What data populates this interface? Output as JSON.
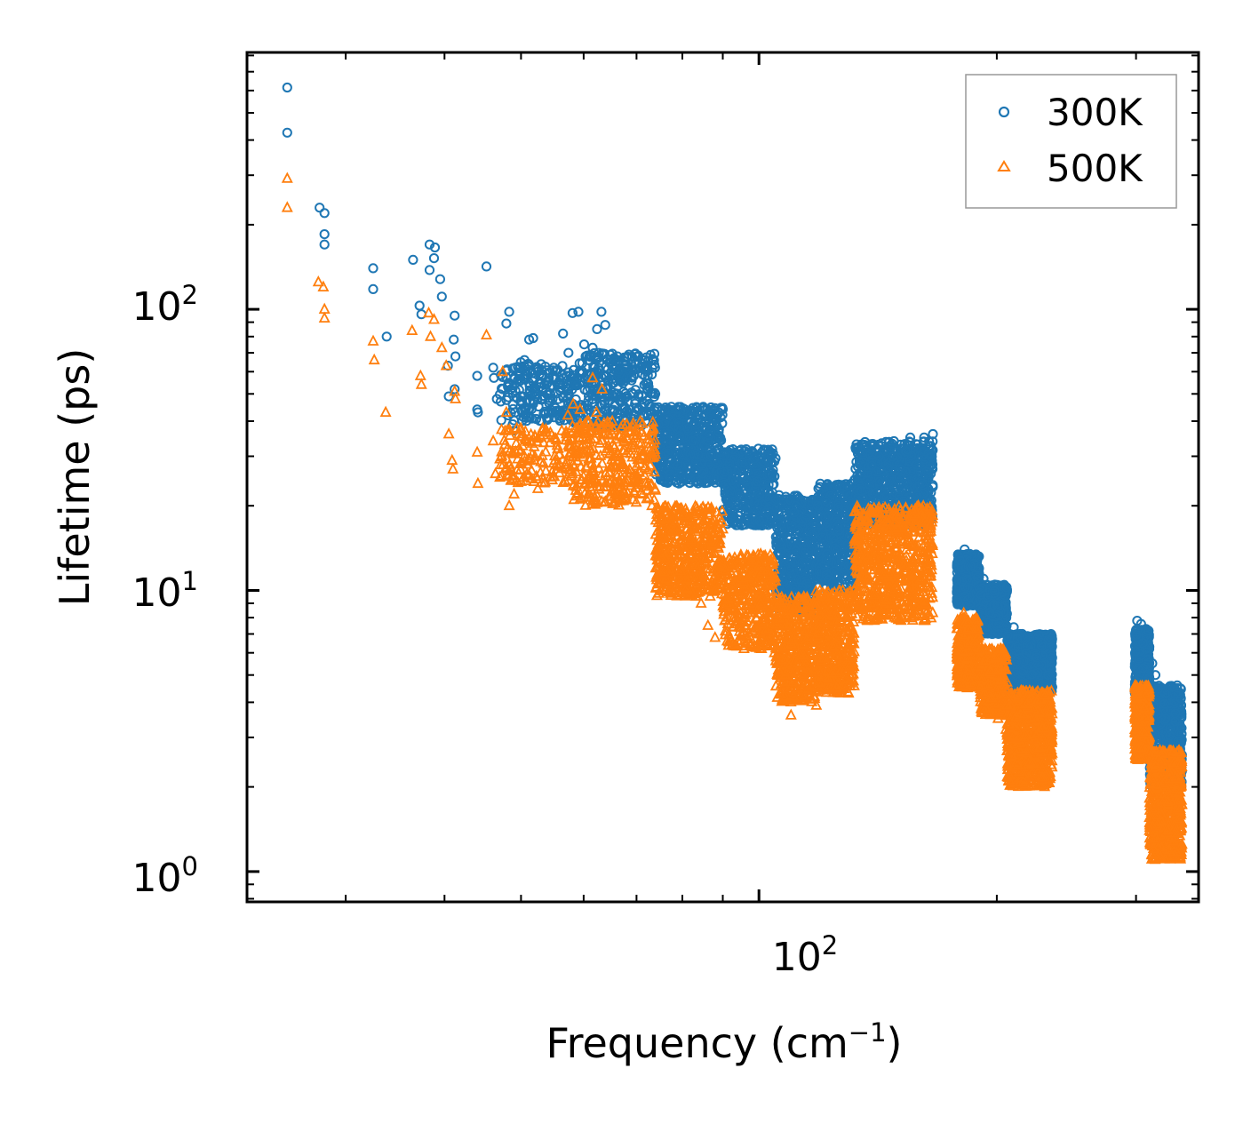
{
  "chart_data": {
    "type": "scatter",
    "title": "",
    "xlabel": "Frequency (cm",
    "xlabel_sup": "−1",
    "xlabel_close": ")",
    "ylabel": "Lifetime (ps)",
    "xscale": "log",
    "yscale": "log",
    "xlim": [
      22.5,
      360
    ],
    "ylim": [
      0.78,
      820
    ],
    "x_ticks": [
      {
        "value": 100,
        "base": "10",
        "exp": "2"
      }
    ],
    "y_ticks": [
      {
        "value": 1,
        "base": "10",
        "exp": "0"
      },
      {
        "value": 10,
        "base": "10",
        "exp": "1"
      },
      {
        "value": 100,
        "base": "10",
        "exp": "2"
      }
    ],
    "legend": {
      "position": "top-right"
    },
    "colors": {
      "300K": "#1f77b4",
      "500K": "#ff7f0e"
    },
    "series": [
      {
        "name": "300K",
        "marker": "circle",
        "points": [
          [
            25.3,
            615
          ],
          [
            25.3,
            425
          ],
          [
            27.8,
            230
          ],
          [
            28.2,
            220
          ],
          [
            28.2,
            185
          ],
          [
            28.2,
            170
          ],
          [
            32.5,
            140
          ],
          [
            32.5,
            118
          ],
          [
            33.8,
            80
          ],
          [
            36.5,
            150
          ],
          [
            37.2,
            103
          ],
          [
            37.4,
            96
          ],
          [
            38.3,
            170
          ],
          [
            38.3,
            138
          ],
          [
            38.9,
            166
          ],
          [
            38.8,
            152
          ],
          [
            39.5,
            128
          ],
          [
            39.7,
            111
          ],
          [
            40.4,
            63
          ],
          [
            40.5,
            49
          ],
          [
            41.1,
            78
          ],
          [
            41.2,
            95
          ],
          [
            41.3,
            68
          ],
          [
            41.2,
            52
          ],
          [
            44.0,
            58
          ],
          [
            44.0,
            44
          ],
          [
            44.1,
            43
          ],
          [
            45.2,
            142
          ],
          [
            46.1,
            62
          ],
          [
            46.2,
            57
          ],
          [
            46.6,
            48
          ],
          [
            47.4,
            52
          ],
          [
            47.9,
            89
          ],
          [
            48.3,
            98
          ],
          [
            48.8,
            39
          ],
          [
            49.0,
            37
          ],
          [
            50.5,
            66
          ],
          [
            51.2,
            78
          ],
          [
            51.8,
            79
          ],
          [
            52.5,
            60
          ],
          [
            53.5,
            49
          ],
          [
            55.0,
            62
          ],
          [
            56.5,
            82
          ],
          [
            57.4,
            70
          ],
          [
            58.1,
            97
          ],
          [
            59.1,
            98
          ],
          [
            60.1,
            75
          ],
          [
            60.4,
            62
          ],
          [
            61.0,
            68
          ],
          [
            61.6,
            73
          ],
          [
            62.4,
            85
          ],
          [
            63.2,
            98
          ],
          [
            63.9,
            88
          ],
          [
            64.5,
            56
          ],
          [
            66.2,
            68
          ],
          [
            67.1,
            58
          ],
          [
            68.0,
            62
          ],
          [
            69.3,
            50
          ],
          [
            70.2,
            44
          ],
          [
            72.4,
            42
          ],
          [
            74.8,
            40
          ],
          [
            77.1,
            38
          ],
          [
            79.5,
            36
          ],
          [
            82.0,
            35
          ],
          [
            84.4,
            34
          ],
          [
            86.8,
            30
          ],
          [
            88.9,
            28
          ],
          [
            91.7,
            27
          ],
          [
            94.8,
            24
          ],
          [
            98.2,
            31
          ],
          [
            100.5,
            29
          ],
          [
            103.3,
            22
          ],
          [
            105.9,
            20
          ],
          [
            108.4,
            18
          ],
          [
            111.1,
            15
          ],
          [
            113.7,
            12.5
          ],
          [
            116.6,
            10
          ],
          [
            118.0,
            8.4
          ],
          [
            120.1,
            11
          ],
          [
            121.4,
            16
          ],
          [
            123.5,
            14
          ],
          [
            125.7,
            17
          ],
          [
            128.5,
            19
          ],
          [
            131.0,
            21
          ],
          [
            134.2,
            24
          ],
          [
            137.3,
            26
          ],
          [
            140.7,
            28
          ],
          [
            144.1,
            31
          ],
          [
            147.4,
            30
          ],
          [
            151.3,
            32
          ],
          [
            155.4,
            35
          ],
          [
            158.7,
            33
          ],
          [
            161.8,
            35
          ],
          [
            164.9,
            30
          ],
          [
            166.0,
            36
          ],
          [
            179.0,
            10.5
          ],
          [
            182.1,
            14
          ],
          [
            185.1,
            13
          ],
          [
            188.6,
            12
          ],
          [
            192.4,
            11
          ],
          [
            196.7,
            9.5
          ],
          [
            201.0,
            8.5
          ],
          [
            205.6,
            8
          ],
          [
            210.1,
            7.4
          ],
          [
            215.3,
            7
          ],
          [
            220.4,
            6.8
          ],
          [
            225.8,
            6.6
          ],
          [
            229.9,
            6.5
          ],
          [
            233.0,
            6.3
          ],
          [
            234.5,
            6.0
          ],
          [
            301.0,
            7.8
          ],
          [
            304.5,
            7.6
          ],
          [
            308.2,
            7.2
          ],
          [
            311.9,
            6.3
          ],
          [
            314.6,
            5.5
          ],
          [
            317.4,
            5.0
          ],
          [
            321.2,
            4.5
          ],
          [
            325.3,
            4.1
          ],
          [
            329.1,
            3.6
          ],
          [
            333.1,
            3.2
          ],
          [
            337.4,
            2.8
          ],
          [
            340.8,
            2.3
          ],
          [
            342.4,
            2.0
          ]
        ],
        "bands": [
          [
            47,
            58,
            40,
            65,
            200
          ],
          [
            58,
            74,
            38,
            70,
            320
          ],
          [
            74,
            90,
            24,
            45,
            520
          ],
          [
            90,
            105,
            17,
            32,
            420
          ],
          [
            105,
            118,
            8.5,
            22,
            420
          ],
          [
            118,
            132,
            10,
            24,
            420
          ],
          [
            132,
            166,
            17,
            34,
            720
          ],
          [
            178,
            190,
            8.8,
            13.5,
            420
          ],
          [
            190,
            206,
            7,
            10.5,
            380
          ],
          [
            206,
            235,
            4.3,
            7,
            800
          ],
          [
            299,
            312,
            4.3,
            7.3,
            380
          ],
          [
            312,
            343,
            2.0,
            4.6,
            650
          ]
        ]
      },
      {
        "name": "500K",
        "marker": "triangle",
        "points": [
          [
            25.3,
            292
          ],
          [
            25.3,
            230
          ],
          [
            27.7,
            125
          ],
          [
            28.1,
            120
          ],
          [
            28.2,
            100
          ],
          [
            28.2,
            93
          ],
          [
            32.5,
            77
          ],
          [
            32.6,
            66
          ],
          [
            33.7,
            43
          ],
          [
            36.4,
            84
          ],
          [
            37.3,
            58
          ],
          [
            37.4,
            54
          ],
          [
            38.2,
            97
          ],
          [
            38.4,
            80
          ],
          [
            38.8,
            92
          ],
          [
            39.7,
            73
          ],
          [
            40.2,
            63
          ],
          [
            40.5,
            36
          ],
          [
            40.9,
            29
          ],
          [
            41.0,
            27
          ],
          [
            41.2,
            51
          ],
          [
            41.3,
            48
          ],
          [
            44.0,
            31
          ],
          [
            44.1,
            24
          ],
          [
            45.2,
            81
          ],
          [
            46.1,
            34
          ],
          [
            46.4,
            26
          ],
          [
            47.4,
            60
          ],
          [
            47.9,
            43
          ],
          [
            48.3,
            20
          ],
          [
            49.0,
            22
          ],
          [
            50.5,
            30
          ],
          [
            51.5,
            25
          ],
          [
            52.5,
            23
          ],
          [
            55.2,
            29
          ],
          [
            56.3,
            37
          ],
          [
            57.3,
            42
          ],
          [
            58.2,
            46
          ],
          [
            59.4,
            44
          ],
          [
            60.2,
            36
          ],
          [
            61.6,
            57
          ],
          [
            62.3,
            43
          ],
          [
            63.3,
            52
          ],
          [
            64.4,
            36
          ],
          [
            65.8,
            30
          ],
          [
            67.4,
            28
          ],
          [
            68.6,
            27
          ],
          [
            69.8,
            25
          ],
          [
            71.3,
            22
          ],
          [
            73.2,
            20
          ],
          [
            75.1,
            18
          ],
          [
            77.8,
            14
          ],
          [
            80.1,
            12
          ],
          [
            82.4,
            10.5
          ],
          [
            84.5,
            9.0
          ],
          [
            86.2,
            7.5
          ],
          [
            88.0,
            6.8
          ],
          [
            90.5,
            7.8
          ],
          [
            92.4,
            6.6
          ],
          [
            95.6,
            8
          ],
          [
            98.0,
            8.5
          ],
          [
            101.4,
            7.2
          ],
          [
            104.6,
            6
          ],
          [
            107.2,
            4.4
          ],
          [
            109.8,
            3.6
          ],
          [
            112.5,
            4.3
          ],
          [
            116.1,
            4.2
          ],
          [
            118.2,
            3.9
          ],
          [
            120.1,
            5
          ],
          [
            123.2,
            5.4
          ],
          [
            126.1,
            6.8
          ],
          [
            128.9,
            8
          ],
          [
            132.0,
            10
          ],
          [
            135.4,
            12
          ],
          [
            139.0,
            13.5
          ],
          [
            142.8,
            15
          ],
          [
            146.9,
            16.5
          ],
          [
            151.2,
            17.5
          ],
          [
            155.5,
            18.5
          ],
          [
            159.1,
            20
          ],
          [
            162.4,
            19
          ],
          [
            165.8,
            18
          ],
          [
            178.5,
            5.8
          ],
          [
            181.6,
            8.3
          ],
          [
            185.0,
            7.5
          ],
          [
            188.3,
            6.8
          ],
          [
            192.1,
            5.5
          ],
          [
            196.1,
            4.3
          ],
          [
            200.7,
            3.5
          ],
          [
            205.3,
            3.2
          ],
          [
            210.1,
            3.4
          ],
          [
            215.3,
            3.5
          ],
          [
            220.4,
            3.7
          ],
          [
            225.8,
            3.5
          ],
          [
            229.4,
            2.5
          ],
          [
            232.1,
            2.1
          ],
          [
            234.3,
            2.4
          ],
          [
            301.1,
            4.4
          ],
          [
            304.7,
            4.2
          ],
          [
            308.3,
            3.8
          ],
          [
            311.7,
            3.0
          ],
          [
            315.0,
            2.4
          ],
          [
            318.6,
            2.0
          ],
          [
            322.4,
            1.8
          ],
          [
            326.3,
            1.6
          ],
          [
            330.0,
            1.45
          ],
          [
            334.1,
            1.35
          ],
          [
            338.3,
            1.2
          ],
          [
            341.5,
            1.15
          ],
          [
            343.0,
            1.25
          ]
        ],
        "bands": [
          [
            47,
            58,
            24,
            38,
            150
          ],
          [
            58,
            74,
            20,
            40,
            320
          ],
          [
            74,
            90,
            9.5,
            20,
            520
          ],
          [
            90,
            105,
            6.2,
            13.5,
            420
          ],
          [
            105,
            118,
            4.0,
            9.5,
            420
          ],
          [
            118,
            132,
            4.3,
            10,
            420
          ],
          [
            132,
            166,
            7.8,
            20,
            720
          ],
          [
            178,
            190,
            4.5,
            8,
            400
          ],
          [
            190,
            206,
            3.6,
            6.2,
            380
          ],
          [
            206,
            235,
            2.0,
            4.4,
            800
          ],
          [
            299,
            312,
            2.5,
            4.6,
            380
          ],
          [
            312,
            343,
            1.1,
            2.7,
            650
          ]
        ]
      }
    ]
  }
}
